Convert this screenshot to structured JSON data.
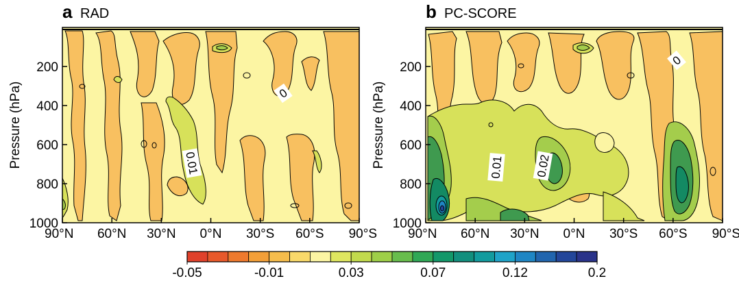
{
  "colors": {
    "background": "#fcf5a3",
    "negative_patch": "#f8c060",
    "positive_light": "#d7e15a",
    "positive_mid": "#a4cd4c",
    "positive_dark": "#3f9a4f",
    "positive_strong": "#138a63"
  },
  "colorbar": {
    "labels": [
      "-0.05",
      "-0.01",
      "0.03",
      "0.07",
      "0.12",
      "0.2"
    ],
    "colors": [
      "#e0412b",
      "#e8592b",
      "#ee7a2e",
      "#f39f38",
      "#f6bd4c",
      "#f9d96a",
      "#fcf5a3",
      "#dfe660",
      "#c2da4d",
      "#9ecf48",
      "#68bd4c",
      "#30a856",
      "#13986a",
      "#128f7e",
      "#129b9e",
      "#1fa3c8",
      "#1f86c4",
      "#2165ae",
      "#23469a",
      "#2a338a"
    ]
  },
  "chart_data": [
    {
      "type": "heatmap",
      "panel": "a",
      "title": "RAD",
      "xlabel": "",
      "ylabel": "Pressure (hPa)",
      "x_ticks": [
        "90°N",
        "60°N",
        "30°N",
        "0°N",
        "30°S",
        "60°S",
        "90°S"
      ],
      "y_ticks": [
        "200",
        "400",
        "600",
        "800",
        "1000"
      ],
      "xlim": [
        90,
        -90
      ],
      "ylim": [
        1000,
        0
      ],
      "contour_labels": [
        "0",
        "0.01"
      ],
      "features": [
        {
          "lat": -10,
          "p": 120,
          "value": 0.01
        },
        {
          "lat": 15,
          "p": 720,
          "value": 0.01
        },
        {
          "lat": 85,
          "p": 900,
          "value": 0.01
        },
        {
          "lat": 35,
          "p": 300,
          "value": -0.005
        },
        {
          "lat": -45,
          "p": 350,
          "value": -0.005
        },
        {
          "lat": -85,
          "p": 550,
          "value": -0.005
        }
      ]
    },
    {
      "type": "heatmap",
      "panel": "b",
      "title": "PC-SCORE",
      "xlabel": "",
      "ylabel": "Pressure (hPa)",
      "x_ticks": [
        "90°N",
        "60°N",
        "30°N",
        "0°N",
        "30°S",
        "60°S",
        "90°S"
      ],
      "y_ticks": [
        "200",
        "400",
        "600",
        "800",
        "1000"
      ],
      "xlim": [
        90,
        -90
      ],
      "ylim": [
        1000,
        0
      ],
      "contour_labels": [
        "0",
        "0.01",
        "0.02"
      ],
      "features": [
        {
          "lat": 75,
          "p": 920,
          "value": 0.12
        },
        {
          "lat": 80,
          "p": 700,
          "value": 0.05
        },
        {
          "lat": 5,
          "p": 770,
          "value": 0.04
        },
        {
          "lat": -65,
          "p": 830,
          "value": 0.06
        },
        {
          "lat": 20,
          "p": 550,
          "value": 0.02
        },
        {
          "lat": 45,
          "p": 990,
          "value": 0.03
        },
        {
          "lat": -10,
          "p": 120,
          "value": 0.02
        },
        {
          "lat": -50,
          "p": 250,
          "value": -0.005
        }
      ]
    }
  ]
}
